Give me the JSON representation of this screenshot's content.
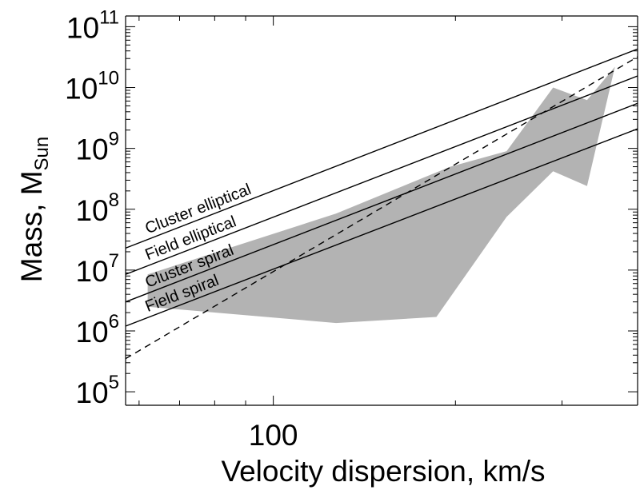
{
  "chart_data": {
    "type": "line",
    "title": "",
    "xlabel": "Velocity dispersion, km/s",
    "ylabel_main": "Mass, M",
    "ylabel_sub": "Sun",
    "x_scale": "log",
    "y_scale": "log",
    "xlim": [
      57,
      400
    ],
    "ylim": [
      60000,
      150000000000
    ],
    "grid": false,
    "x_tick_labels": [
      {
        "value": 100,
        "text": "100"
      }
    ],
    "x_minor_ticks": [
      60,
      70,
      80,
      90,
      200,
      300,
      400
    ],
    "y_tick_labels": [
      {
        "value": 100000,
        "base": "10",
        "exp": "5"
      },
      {
        "value": 1000000,
        "base": "10",
        "exp": "6"
      },
      {
        "value": 10000000,
        "base": "10",
        "exp": "7"
      },
      {
        "value": 100000000,
        "base": "10",
        "exp": "8"
      },
      {
        "value": 1000000000,
        "base": "10",
        "exp": "9"
      },
      {
        "value": 10000000000,
        "base": "10",
        "exp": "10"
      },
      {
        "value": 100000000000,
        "base": "10",
        "exp": "11"
      }
    ],
    "shaded_region": {
      "color": "#b3b3b3",
      "points": [
        [
          62,
          8500000
        ],
        [
          127,
          85000000
        ],
        [
          196,
          500000000
        ],
        [
          243,
          900000000
        ],
        [
          290,
          10000000000
        ],
        [
          330,
          6200000000
        ],
        [
          367,
          22000000000
        ],
        [
          330,
          240000000
        ],
        [
          290,
          420000000
        ],
        [
          243,
          75000000
        ],
        [
          186,
          1700000
        ],
        [
          127,
          1350000
        ],
        [
          62,
          2500000
        ]
      ]
    },
    "series": [
      {
        "name": "Cluster elliptical",
        "style": "solid",
        "x": [
          57,
          400
        ],
        "y": [
          23000000,
          43000000000
        ],
        "label_at_x": 62
      },
      {
        "name": "Field elliptical",
        "style": "solid",
        "x": [
          57,
          400
        ],
        "y": [
          8500000,
          15500000000
        ],
        "label_at_x": 62
      },
      {
        "name": "Cluster spiral",
        "style": "solid",
        "x": [
          57,
          400
        ],
        "y": [
          3000000,
          5500000000
        ],
        "label_at_x": 62
      },
      {
        "name": "Field spiral",
        "style": "solid",
        "x": [
          57,
          400
        ],
        "y": [
          1200000,
          2100000000
        ],
        "label_at_x": 62
      },
      {
        "name": "",
        "style": "dashed",
        "x": [
          57,
          400
        ],
        "y": [
          350000,
          32000000000
        ]
      }
    ]
  }
}
